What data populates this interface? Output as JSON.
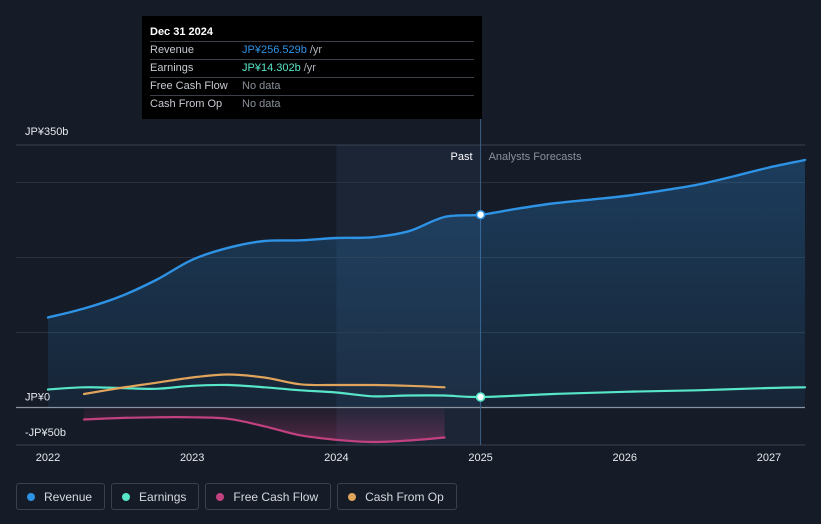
{
  "tooltip": {
    "date": "Dec 31 2024",
    "rows": [
      {
        "label": "Revenue",
        "value": "JP¥256.529b",
        "unit": "/yr",
        "color": "#2e93e5"
      },
      {
        "label": "Earnings",
        "value": "JP¥14.302b",
        "unit": "/yr",
        "color": "#58e6c9"
      },
      {
        "label": "Free Cash Flow",
        "value": "No data",
        "unit": "",
        "color": ""
      },
      {
        "label": "Cash From Op",
        "value": "No data",
        "unit": "",
        "color": ""
      }
    ]
  },
  "legend": [
    {
      "label": "Revenue",
      "color": "#2e93e5"
    },
    {
      "label": "Earnings",
      "color": "#58e6c9"
    },
    {
      "label": "Free Cash Flow",
      "color": "#c2417f"
    },
    {
      "label": "Cash From Op",
      "color": "#e0a45c"
    }
  ],
  "chart_data": {
    "type": "line",
    "title": "",
    "xlabel": "",
    "ylabel": "",
    "ylim": [
      -50,
      350
    ],
    "xlim": [
      2022,
      2027.25
    ],
    "y_tick_labels": [
      {
        "value": 350,
        "label": "JP¥350b"
      },
      {
        "value": 0,
        "label": "JP¥0"
      },
      {
        "value": -50,
        "label": "-JP¥50b"
      }
    ],
    "gridlines": [
      300,
      200,
      100,
      0
    ],
    "x_ticks": [
      {
        "value": 2022,
        "label": "2022"
      },
      {
        "value": 2023,
        "label": "2023"
      },
      {
        "value": 2024,
        "label": "2024"
      },
      {
        "value": 2025,
        "label": "2025"
      },
      {
        "value": 2026,
        "label": "2026"
      },
      {
        "value": 2027,
        "label": "2027"
      }
    ],
    "past_label": "Past",
    "forecast_label": "Analysts Forecasts",
    "divider_x": 2025,
    "highlight_range": [
      2024,
      2025
    ],
    "series": [
      {
        "name": "Revenue",
        "color": "#2e93e5",
        "fill": true,
        "points": [
          [
            2022,
            120
          ],
          [
            2022.25,
            132
          ],
          [
            2022.5,
            148
          ],
          [
            2022.75,
            170
          ],
          [
            2023,
            197
          ],
          [
            2023.25,
            213
          ],
          [
            2023.5,
            222
          ],
          [
            2023.75,
            223
          ],
          [
            2024,
            226
          ],
          [
            2024.25,
            227
          ],
          [
            2024.5,
            235
          ],
          [
            2024.75,
            254
          ],
          [
            2025,
            257
          ],
          [
            2025.25,
            265
          ],
          [
            2025.5,
            272
          ],
          [
            2025.75,
            277
          ],
          [
            2026,
            282
          ],
          [
            2026.25,
            289
          ],
          [
            2026.5,
            297
          ],
          [
            2026.75,
            308
          ],
          [
            2027,
            320
          ],
          [
            2027.25,
            330
          ]
        ]
      },
      {
        "name": "Earnings",
        "color": "#58e6c9",
        "fill": false,
        "points": [
          [
            2022,
            24
          ],
          [
            2022.25,
            27
          ],
          [
            2022.5,
            26
          ],
          [
            2022.75,
            25
          ],
          [
            2023,
            29
          ],
          [
            2023.25,
            30
          ],
          [
            2023.5,
            27
          ],
          [
            2023.75,
            23
          ],
          [
            2024,
            20
          ],
          [
            2024.25,
            15
          ],
          [
            2024.5,
            16
          ],
          [
            2024.75,
            16
          ],
          [
            2025,
            14
          ],
          [
            2025.5,
            18
          ],
          [
            2026,
            21
          ],
          [
            2026.5,
            23
          ],
          [
            2027,
            26
          ],
          [
            2027.25,
            27
          ]
        ]
      },
      {
        "name": "Free Cash Flow",
        "color": "#c2417f",
        "fill": true,
        "points": [
          [
            2022.25,
            -16
          ],
          [
            2022.5,
            -14
          ],
          [
            2022.75,
            -13
          ],
          [
            2023,
            -13
          ],
          [
            2023.25,
            -15
          ],
          [
            2023.5,
            -25
          ],
          [
            2023.75,
            -37
          ],
          [
            2024,
            -43
          ],
          [
            2024.25,
            -46
          ],
          [
            2024.5,
            -44
          ],
          [
            2024.75,
            -40
          ]
        ]
      },
      {
        "name": "Cash From Op",
        "color": "#e0a45c",
        "fill": false,
        "points": [
          [
            2022.25,
            18
          ],
          [
            2022.5,
            26
          ],
          [
            2022.75,
            33
          ],
          [
            2023,
            40
          ],
          [
            2023.25,
            44
          ],
          [
            2023.5,
            40
          ],
          [
            2023.75,
            31
          ],
          [
            2024,
            30
          ],
          [
            2024.25,
            30
          ],
          [
            2024.5,
            29
          ],
          [
            2024.75,
            27
          ]
        ]
      }
    ],
    "markers": [
      {
        "series": "Revenue",
        "x": 2025,
        "y": 257
      },
      {
        "series": "Earnings",
        "x": 2025,
        "y": 14
      }
    ]
  }
}
